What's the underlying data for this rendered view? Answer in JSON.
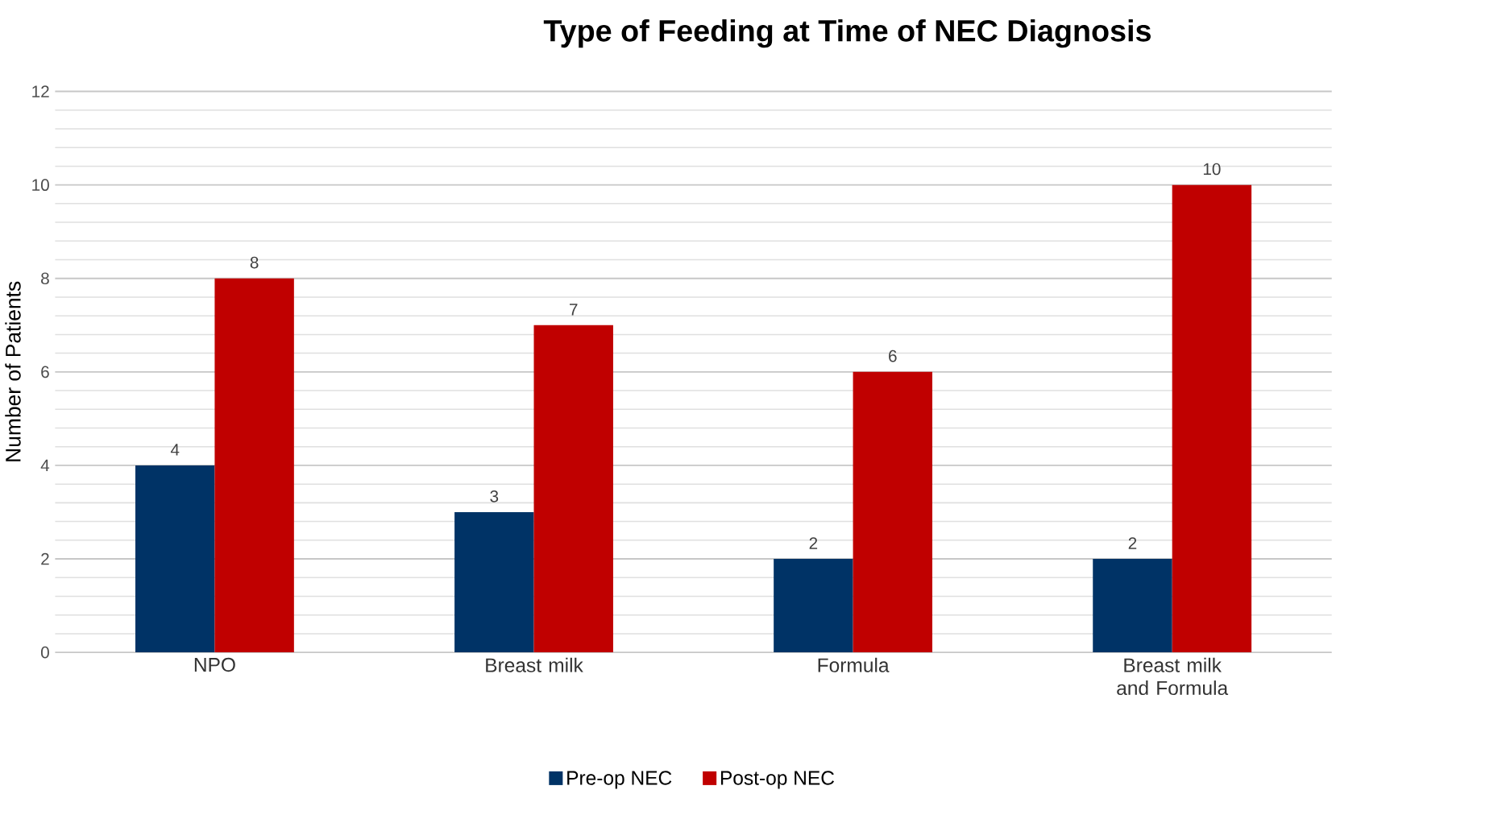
{
  "chart_data": {
    "type": "bar",
    "title": "Type of Feeding at Time of NEC Diagnosis",
    "ylabel": "Number of Patients",
    "categories": [
      "NPO",
      "Breast milk",
      "Formula",
      "Breast milk and Formula"
    ],
    "series": [
      {
        "name": "Pre-op NEC",
        "color": "#003366",
        "values": [
          4,
          3,
          2,
          2
        ]
      },
      {
        "name": "Post-op NEC",
        "color": "#c00000",
        "values": [
          8,
          7,
          6,
          10
        ]
      }
    ],
    "ylim": [
      0,
      12
    ],
    "yticks": [
      0,
      2,
      4,
      6,
      8,
      10,
      12
    ],
    "grid": "y",
    "legend": "bottom",
    "data_labels": true
  }
}
